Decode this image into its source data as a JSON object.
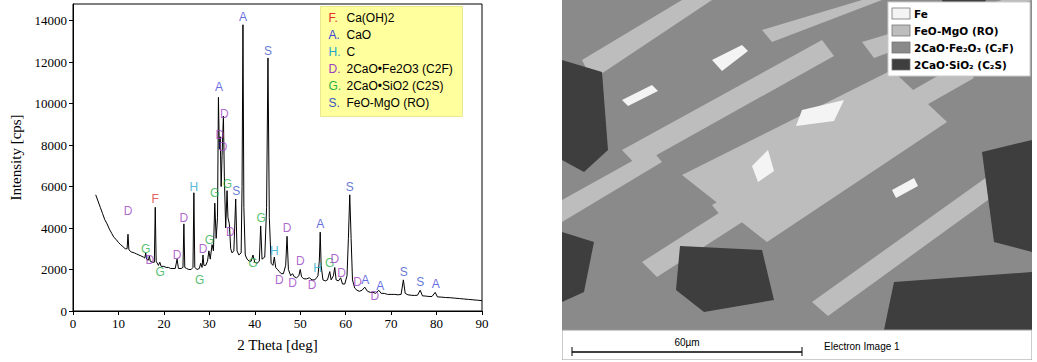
{
  "chart_data": {
    "type": "line",
    "x_label": "2 Theta [deg]",
    "y_label": "Intensity [cps]",
    "xlim": [
      0,
      90
    ],
    "xticks": [
      0,
      10,
      20,
      30,
      40,
      50,
      60,
      70,
      80,
      90
    ],
    "ylim": [
      0,
      14800
    ],
    "yticks": [
      0,
      2000,
      4000,
      6000,
      8000,
      10000,
      12000,
      14000
    ],
    "grid": false,
    "color": "#000000",
    "legend": "upper right",
    "legend_entries": [
      {
        "code": "F.",
        "name": "Ca(OH)2",
        "color": "#e03030"
      },
      {
        "code": "A.",
        "name": "CaO",
        "color": "#3b46d6"
      },
      {
        "code": "H.",
        "name": "C",
        "color": "#23a7c9"
      },
      {
        "code": "D.",
        "name": "2CaO•Fe2O3 (C2F)",
        "color": "#9b3fbf"
      },
      {
        "code": "G.",
        "name": "2CaO•SiO2 (C2S)",
        "color": "#2bb04a"
      },
      {
        "code": "S.",
        "name": "FeO-MgO (RO)",
        "color": "#3b55c9"
      }
    ],
    "x": [
      5,
      5.5,
      6,
      6.5,
      7,
      7.5,
      8,
      8.5,
      9,
      9.5,
      10,
      10.5,
      11,
      11.5,
      11.9,
      12.1,
      12.3,
      12.8,
      13.5,
      14,
      14.5,
      15,
      15.5,
      15.8,
      16.0,
      16.2,
      16.6,
      16.8,
      17.0,
      17.5,
      17.9,
      18.1,
      18.3,
      18.8,
      19.1,
      19.4,
      20,
      20.5,
      21,
      21.5,
      22,
      22.5,
      22.9,
      23.2,
      23.8,
      24.2,
      24.4,
      24.6,
      25,
      25.5,
      26,
      26.4,
      26.6,
      26.8,
      27.3,
      27.8,
      28.1,
      28.4,
      28.6,
      28.8,
      29.2,
      29.6,
      29.9,
      30.2,
      30.6,
      30.9,
      31.2,
      31.5,
      31.8,
      32.0,
      32.2,
      32.4,
      32.6,
      32.8,
      33.1,
      33.3,
      33.6,
      33.9,
      34.1,
      34.4,
      34.7,
      35.0,
      35.4,
      35.8,
      36.1,
      36.5,
      37.0,
      37.2,
      37.4,
      37.6,
      37.9,
      38.3,
      38.8,
      39.2,
      39.6,
      40.0,
      40.5,
      41.0,
      41.3,
      41.6,
      42.2,
      42.6,
      42.9,
      43.2,
      43.6,
      44.0,
      44.3,
      44.6,
      45.0,
      45.4,
      45.8,
      46.3,
      46.8,
      47.1,
      47.4,
      47.9,
      48.3,
      48.7,
      49.2,
      49.7,
      50.0,
      50.3,
      50.8,
      51.4,
      52.0,
      52.6,
      53.2,
      53.6,
      53.9,
      54.2,
      54.4,
      54.6,
      55.0,
      55.5,
      56.0,
      56.5,
      56.8,
      57.3,
      57.6,
      57.9,
      58.4,
      58.9,
      59.3,
      59.8,
      60.3,
      60.6,
      60.9,
      61.2,
      61.5,
      62.0,
      62.5,
      63.0,
      63.6,
      64.2,
      64.8,
      65.4,
      66.0,
      66.6,
      67.3,
      67.8,
      68.5,
      69.2,
      70.0,
      70.8,
      71.5,
      72.2,
      72.7,
      73.1,
      73.7,
      74.4,
      75.1,
      75.8,
      76.4,
      76.9,
      77.6,
      78.3,
      79.0,
      79.7,
      80.2,
      81.0,
      82.0,
      83.0,
      84.0,
      85.0,
      86.0,
      87.0,
      88.0,
      89.0,
      90
    ],
    "values": [
      5600,
      5300,
      5000,
      4700,
      4400,
      4200,
      3950,
      3750,
      3550,
      3450,
      3300,
      3200,
      3100,
      3000,
      3000,
      3700,
      2950,
      2850,
      2800,
      2750,
      2700,
      2650,
      2600,
      2550,
      2800,
      2500,
      2450,
      2650,
      2400,
      2350,
      2350,
      5000,
      2400,
      2200,
      2350,
      2150,
      2150,
      2100,
      2100,
      2050,
      2050,
      2050,
      2500,
      2050,
      2050,
      2100,
      4200,
      2100,
      2050,
      2000,
      2000,
      2100,
      5700,
      2100,
      2000,
      2050,
      2300,
      2100,
      2700,
      2200,
      2200,
      2400,
      2900,
      2500,
      3200,
      2900,
      5200,
      3500,
      4500,
      10300,
      7800,
      8400,
      6000,
      7500,
      9400,
      6500,
      4000,
      5800,
      4500,
      4200,
      3000,
      2800,
      2900,
      5400,
      2900,
      2700,
      2800,
      6000,
      13800,
      5000,
      2700,
      2500,
      2400,
      2400,
      2700,
      2350,
      2300,
      2400,
      4100,
      2500,
      2600,
      5000,
      12200,
      4500,
      2300,
      2200,
      2600,
      2100,
      2000,
      1900,
      1800,
      1800,
      2200,
      3600,
      2000,
      1700,
      1800,
      1650,
      1600,
      1700,
      2000,
      1650,
      1550,
      1550,
      1600,
      1500,
      1500,
      1600,
      1700,
      2400,
      3800,
      2200,
      1500,
      1450,
      1500,
      1900,
      1500,
      1700,
      2100,
      1500,
      1450,
      1600,
      1300,
      1300,
      1700,
      3500,
      5600,
      3500,
      1500,
      1100,
      1000,
      950,
      1000,
      1150,
      950,
      900,
      900,
      850,
      1000,
      850,
      850,
      800,
      800,
      800,
      780,
      800,
      1500,
      850,
      780,
      760,
      750,
      760,
      1000,
      730,
      720,
      700,
      700,
      900,
      680,
      670,
      650,
      640,
      620,
      600,
      580,
      560,
      540,
      520,
      500
    ],
    "annotations": [
      {
        "text": "D",
        "x": 12.1,
        "y": 4800,
        "color": "#9b3fbf"
      },
      {
        "text": "G",
        "x": 16.0,
        "y": 3000,
        "color": "#2bb04a"
      },
      {
        "text": "D",
        "x": 16.9,
        "y": 2450,
        "color": "#9b3fbf"
      },
      {
        "text": "F",
        "x": 18.1,
        "y": 5400,
        "color": "#e03030"
      },
      {
        "text": "G",
        "x": 19.2,
        "y": 1900,
        "color": "#2bb04a"
      },
      {
        "text": "D",
        "x": 22.9,
        "y": 2700,
        "color": "#9b3fbf"
      },
      {
        "text": "D",
        "x": 24.4,
        "y": 4500,
        "color": "#9b3fbf"
      },
      {
        "text": "H",
        "x": 26.6,
        "y": 6000,
        "color": "#23a7c9"
      },
      {
        "text": "G",
        "x": 27.9,
        "y": 1500,
        "color": "#2bb04a"
      },
      {
        "text": "D",
        "x": 28.6,
        "y": 3000,
        "color": "#9b3fbf"
      },
      {
        "text": "G",
        "x": 30.0,
        "y": 3400,
        "color": "#2bb04a"
      },
      {
        "text": "G",
        "x": 31.2,
        "y": 5700,
        "color": "#2bb04a"
      },
      {
        "text": "A",
        "x": 32.1,
        "y": 10800,
        "color": "#3b46d6"
      },
      {
        "text": "D",
        "x": 32.3,
        "y": 8500,
        "color": "#9b3fbf"
      },
      {
        "text": "D",
        "x": 33.0,
        "y": 7900,
        "color": "#9b3fbf"
      },
      {
        "text": "D",
        "x": 33.3,
        "y": 9500,
        "color": "#9b3fbf"
      },
      {
        "text": "G",
        "x": 34.0,
        "y": 6100,
        "color": "#2bb04a"
      },
      {
        "text": "D",
        "x": 34.6,
        "y": 3800,
        "color": "#9b3fbf"
      },
      {
        "text": "S",
        "x": 35.9,
        "y": 5800,
        "color": "#3b55c9"
      },
      {
        "text": "A",
        "x": 37.4,
        "y": 14150,
        "color": "#3b46d6"
      },
      {
        "text": "G",
        "x": 39.6,
        "y": 2300,
        "color": "#2bb04a"
      },
      {
        "text": "G",
        "x": 41.4,
        "y": 4500,
        "color": "#2bb04a"
      },
      {
        "text": "S",
        "x": 42.9,
        "y": 12550,
        "color": "#3b55c9"
      },
      {
        "text": "H",
        "x": 44.3,
        "y": 2900,
        "color": "#23a7c9"
      },
      {
        "text": "D",
        "x": 45.4,
        "y": 1500,
        "color": "#9b3fbf"
      },
      {
        "text": "D",
        "x": 47.1,
        "y": 4000,
        "color": "#9b3fbf"
      },
      {
        "text": "D",
        "x": 48.3,
        "y": 1350,
        "color": "#9b3fbf"
      },
      {
        "text": "D",
        "x": 50.0,
        "y": 2400,
        "color": "#9b3fbf"
      },
      {
        "text": "D",
        "x": 52.6,
        "y": 1250,
        "color": "#9b3fbf"
      },
      {
        "text": "H",
        "x": 53.8,
        "y": 2050,
        "color": "#23a7c9"
      },
      {
        "text": "A",
        "x": 54.4,
        "y": 4200,
        "color": "#3b46d6"
      },
      {
        "text": "G",
        "x": 56.5,
        "y": 2300,
        "color": "#2bb04a"
      },
      {
        "text": "D",
        "x": 57.6,
        "y": 2500,
        "color": "#9b3fbf"
      },
      {
        "text": "D",
        "x": 59.1,
        "y": 1850,
        "color": "#9b3fbf"
      },
      {
        "text": "S",
        "x": 60.9,
        "y": 6000,
        "color": "#3b55c9"
      },
      {
        "text": "D",
        "x": 62.6,
        "y": 1400,
        "color": "#9b3fbf"
      },
      {
        "text": "A",
        "x": 64.3,
        "y": 1500,
        "color": "#3b46d6"
      },
      {
        "text": "D",
        "x": 66.4,
        "y": 700,
        "color": "#9b3fbf"
      },
      {
        "text": "A",
        "x": 67.6,
        "y": 1200,
        "color": "#3b46d6"
      },
      {
        "text": "S",
        "x": 72.8,
        "y": 1900,
        "color": "#3b55c9"
      },
      {
        "text": "S",
        "x": 76.4,
        "y": 1400,
        "color": "#3b55c9"
      },
      {
        "text": "A",
        "x": 79.8,
        "y": 1300,
        "color": "#3b46d6"
      }
    ]
  },
  "micrograph": {
    "legend": [
      {
        "name": "Fe",
        "color": "#f4f4f4"
      },
      {
        "name": "FeO-MgO (RO)",
        "color": "#bdbdbd"
      },
      {
        "name": "2CaO·Fe₂O₃ (C₂F)",
        "color": "#8a8a8a"
      },
      {
        "name": "2CaO·SiO₂ (C₂S)",
        "color": "#3e3e3e"
      }
    ],
    "scale_bar": "60µm",
    "caption": "Electron Image 1"
  }
}
